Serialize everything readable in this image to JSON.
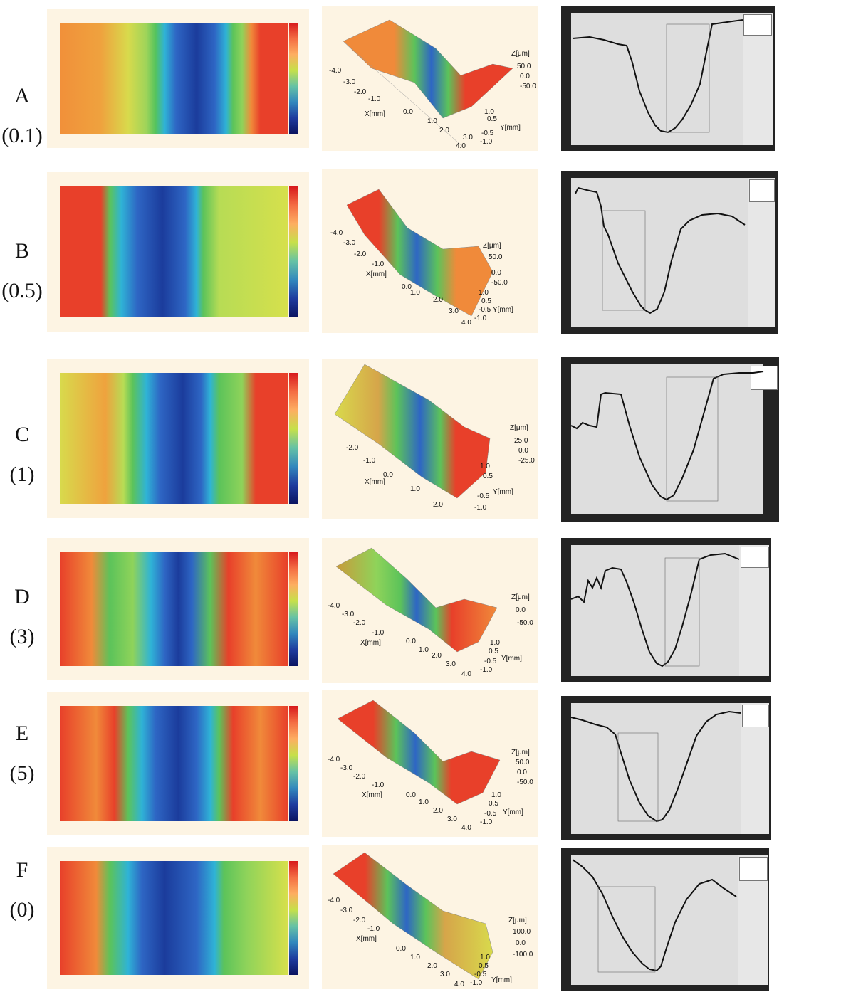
{
  "rows": [
    {
      "letter": "A",
      "param": "(0.1)",
      "z_ticks": [
        "50.0",
        "0.0",
        "-50.0"
      ],
      "x_ticks": [
        "-4.0",
        "-3.0",
        "-2.0",
        "-1.0",
        "0.0",
        "1.0",
        "2.0",
        "3.0",
        "4.0"
      ],
      "y_ticks": [
        "1.0",
        "0.5",
        "-0.5",
        "-1.0"
      ]
    },
    {
      "letter": "B",
      "param": "(0.5)",
      "z_ticks": [
        "50.0",
        "0.0",
        "-50.0"
      ],
      "x_ticks": [
        "-4.0",
        "-3.0",
        "-2.0",
        "-1.0",
        "0.0",
        "1.0",
        "2.0",
        "3.0",
        "4.0"
      ],
      "y_ticks": [
        "1.0",
        "0.5",
        "-0.5",
        "-1.0"
      ]
    },
    {
      "letter": "C",
      "param": "(1)",
      "z_ticks": [
        "25.0",
        "0.0",
        "-25.0"
      ],
      "x_ticks": [
        "-2.0",
        "-1.0",
        "0.0",
        "1.0",
        "2.0"
      ],
      "y_ticks": [
        "1.0",
        "0.5",
        "-0.5",
        "-1.0"
      ]
    },
    {
      "letter": "D",
      "param": "(3)",
      "z_ticks": [
        "0.0",
        "-50.0"
      ],
      "x_ticks": [
        "-4.0",
        "-3.0",
        "-2.0",
        "-1.0",
        "0.0",
        "1.0",
        "2.0",
        "3.0",
        "4.0"
      ],
      "y_ticks": [
        "1.0",
        "0.5",
        "-0.5",
        "-1.0"
      ]
    },
    {
      "letter": "E",
      "param": "(5)",
      "z_ticks": [
        "50.0",
        "0.0",
        "-50.0"
      ],
      "x_ticks": [
        "-4.0",
        "-3.0",
        "-2.0",
        "-1.0",
        "0.0",
        "1.0",
        "2.0",
        "3.0",
        "4.0"
      ],
      "y_ticks": [
        "1.0",
        "0.5",
        "-0.5",
        "-1.0"
      ]
    },
    {
      "letter": "F",
      "param": "(0)",
      "z_ticks": [
        "100.0",
        "0.0",
        "-100.0"
      ],
      "x_ticks": [
        "-4.0",
        "-3.0",
        "-2.0",
        "-1.0",
        "0.0",
        "1.0",
        "2.0",
        "3.0",
        "4.0"
      ],
      "y_ticks": [
        "1.0",
        "0.5",
        "-0.5",
        "-1.0"
      ]
    }
  ],
  "axis_labels": {
    "z": "Z[μm]",
    "x": "X[mm]",
    "y": "Y[mm]"
  },
  "colors": {
    "red": "#e8402a",
    "orange": "#f08a3a",
    "yellow": "#d6e04c",
    "green": "#5cc35a",
    "cyan": "#2fb3d6",
    "blue": "#2e66c4",
    "navy": "#1b3c9c",
    "panel_bg": "#fdf4e3",
    "plot_bg": "#dedede",
    "frame": "#232323"
  }
}
